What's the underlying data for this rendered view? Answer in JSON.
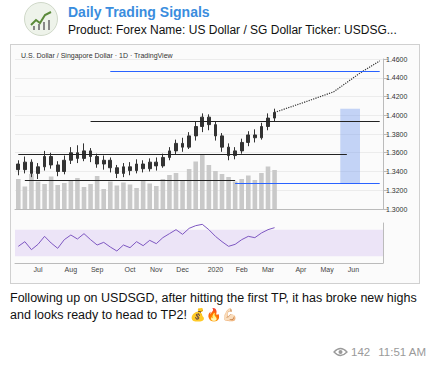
{
  "header": {
    "channel": "Daily Trading Signals",
    "preview": "Product: Forex Name: US Dollar / SG Dollar Ticker: USDSG..."
  },
  "chart_data": [
    {
      "type": "candlestick",
      "title": "U.S. Dollar / Singapore Dollar · 1D · TradingView",
      "categories": [
        null,
        null,
        null,
        "Jul",
        null,
        null,
        null,
        null,
        "Aug",
        null,
        null,
        null,
        "Sep",
        null,
        null,
        null,
        null,
        "Oct",
        null,
        null,
        null,
        "Nov",
        null,
        null,
        null,
        "Dec",
        null,
        null,
        null,
        null,
        "2020",
        null,
        null,
        null,
        "Feb",
        null,
        null,
        null,
        "Mar",
        null,
        null,
        null,
        null,
        "Apr",
        null,
        null,
        null,
        "May",
        null,
        null,
        null,
        "Jun",
        null,
        null,
        null,
        null
      ],
      "series": [
        {
          "type": "candlestick",
          "color": "#333333",
          "values": [
            [
              1.348,
              1.342,
              1.336,
              1.352
            ],
            [
              1.342,
              1.35,
              1.338,
              1.356
            ],
            [
              1.35,
              1.338,
              1.334,
              1.353
            ],
            [
              1.338,
              1.345,
              1.332,
              1.349
            ],
            [
              1.345,
              1.356,
              1.341,
              1.362
            ],
            [
              1.356,
              1.347,
              1.343,
              1.36
            ],
            [
              1.347,
              1.34,
              1.335,
              1.351
            ],
            [
              1.34,
              1.352,
              1.337,
              1.357
            ],
            [
              1.352,
              1.36,
              1.348,
              1.366
            ],
            [
              1.36,
              1.354,
              1.349,
              1.368
            ],
            [
              1.354,
              1.362,
              1.351,
              1.37
            ],
            [
              1.362,
              1.356,
              1.35,
              1.365
            ],
            [
              1.356,
              1.348,
              1.344,
              1.359
            ],
            [
              1.348,
              1.352,
              1.342,
              1.357
            ],
            [
              1.352,
              1.344,
              1.339,
              1.355
            ],
            [
              1.344,
              1.338,
              1.333,
              1.347
            ],
            [
              1.338,
              1.345,
              1.334,
              1.349
            ],
            [
              1.345,
              1.341,
              1.336,
              1.35
            ],
            [
              1.341,
              1.348,
              1.338,
              1.353
            ],
            [
              1.348,
              1.343,
              1.339,
              1.352
            ],
            [
              1.343,
              1.35,
              1.34,
              1.354
            ],
            [
              1.35,
              1.346,
              1.341,
              1.355
            ],
            [
              1.346,
              1.355,
              1.344,
              1.359
            ],
            [
              1.355,
              1.362,
              1.352,
              1.366
            ],
            [
              1.362,
              1.37,
              1.358,
              1.374
            ],
            [
              1.37,
              1.366,
              1.361,
              1.376
            ],
            [
              1.366,
              1.378,
              1.364,
              1.382
            ],
            [
              1.378,
              1.388,
              1.373,
              1.393
            ],
            [
              1.388,
              1.398,
              1.382,
              1.402
            ],
            [
              1.398,
              1.39,
              1.384,
              1.401
            ],
            [
              1.39,
              1.378,
              1.373,
              1.393
            ],
            [
              1.378,
              1.366,
              1.361,
              1.381
            ],
            [
              1.366,
              1.357,
              1.352,
              1.37
            ],
            [
              1.357,
              1.362,
              1.353,
              1.366
            ],
            [
              1.362,
              1.371,
              1.359,
              1.375
            ],
            [
              1.371,
              1.379,
              1.367,
              1.383
            ],
            [
              1.379,
              1.376,
              1.371,
              1.385
            ],
            [
              1.376,
              1.388,
              1.374,
              1.392
            ],
            [
              1.388,
              1.397,
              1.384,
              1.402
            ],
            [
              1.397,
              1.403,
              1.393,
              1.407
            ],
            null,
            null,
            null,
            null,
            null,
            null,
            null,
            null,
            null,
            null,
            null,
            null,
            null,
            null,
            null,
            null
          ]
        },
        {
          "type": "bar",
          "color": "#c9c9c9",
          "axis": "y2",
          "values": [
            60,
            45,
            70,
            55,
            50,
            65,
            48,
            52,
            58,
            62,
            44,
            50,
            66,
            40,
            55,
            47,
            53,
            49,
            42,
            57,
            51,
            46,
            60,
            68,
            72,
            58,
            80,
            95,
            110,
            88,
            76,
            70,
            64,
            55,
            60,
            67,
            58,
            72,
            85,
            78,
            null,
            null,
            null,
            null,
            null,
            null,
            null,
            null,
            null,
            null,
            null,
            null,
            null,
            null,
            null,
            null
          ]
        },
        {
          "type": "line",
          "color": "#333333",
          "line_style": "dotted",
          "marker": "arrow",
          "values": [
            null,
            null,
            null,
            null,
            null,
            null,
            null,
            null,
            null,
            null,
            null,
            null,
            null,
            null,
            null,
            null,
            null,
            null,
            null,
            null,
            null,
            null,
            null,
            null,
            null,
            null,
            null,
            null,
            null,
            null,
            null,
            null,
            null,
            null,
            null,
            null,
            null,
            null,
            null,
            1.403,
            null,
            null,
            null,
            null,
            1.415,
            null,
            null,
            null,
            1.425,
            null,
            null,
            null,
            1.445,
            null,
            null,
            1.458
          ]
        }
      ],
      "levels": [
        {
          "value": 1.394,
          "start": 11,
          "end": 55,
          "color": "#222222"
        },
        {
          "value": 1.358,
          "start": 0,
          "end": 50,
          "color": "#222222"
        },
        {
          "value": 1.331,
          "start": 1,
          "end": 33,
          "color": "#222222"
        },
        {
          "value": 1.447,
          "start": 14,
          "end": 55,
          "color": "#2962ff"
        },
        {
          "value": 1.327,
          "start": 33,
          "end": 55,
          "color": "#2962ff"
        }
      ],
      "box": {
        "start": 49,
        "end": 52,
        "low": 1.327,
        "high": 1.407,
        "color": "#7fa2f0"
      },
      "ylim": [
        1.3,
        1.46
      ],
      "yticks": [
        {
          "value": 1.3,
          "label": "1.3000"
        },
        {
          "value": 1.32,
          "label": "1.3200"
        },
        {
          "value": 1.34,
          "label": "1.3400"
        },
        {
          "value": 1.36,
          "label": "1.3600"
        },
        {
          "value": 1.38,
          "label": "1.3800"
        },
        {
          "value": 1.4,
          "label": "1.4000"
        },
        {
          "value": 1.42,
          "label": "1.4200"
        },
        {
          "value": 1.44,
          "label": "1.4400"
        },
        {
          "value": 1.46,
          "label": "1.4600"
        }
      ],
      "y2lim": [
        0,
        300
      ],
      "grid": true,
      "tick_labels": "y"
    },
    {
      "type": "line",
      "color": "#7e57c2",
      "values": [
        45,
        52,
        40,
        48,
        60,
        50,
        42,
        55,
        62,
        56,
        64,
        55,
        47,
        51,
        44,
        38,
        47,
        43,
        52,
        46,
        54,
        49,
        58,
        64,
        70,
        63,
        72,
        76,
        78,
        70,
        60,
        52,
        45,
        48,
        55,
        60,
        58,
        65,
        70,
        73,
        null,
        null,
        null,
        null,
        null,
        null,
        null,
        null,
        null,
        null,
        null,
        null,
        null,
        null,
        null,
        null
      ],
      "band": [
        30,
        70
      ],
      "band_color": "#ece4f7",
      "ylim": [
        20,
        80
      ],
      "tick_labels": "x"
    }
  ],
  "message": {
    "text": "Following up on USDSGD, after hitting the first TP, it has broke new highs and looks ready to head to TP2! 💰🔥💪🏻",
    "views": 142,
    "time": "11:51 AM"
  }
}
